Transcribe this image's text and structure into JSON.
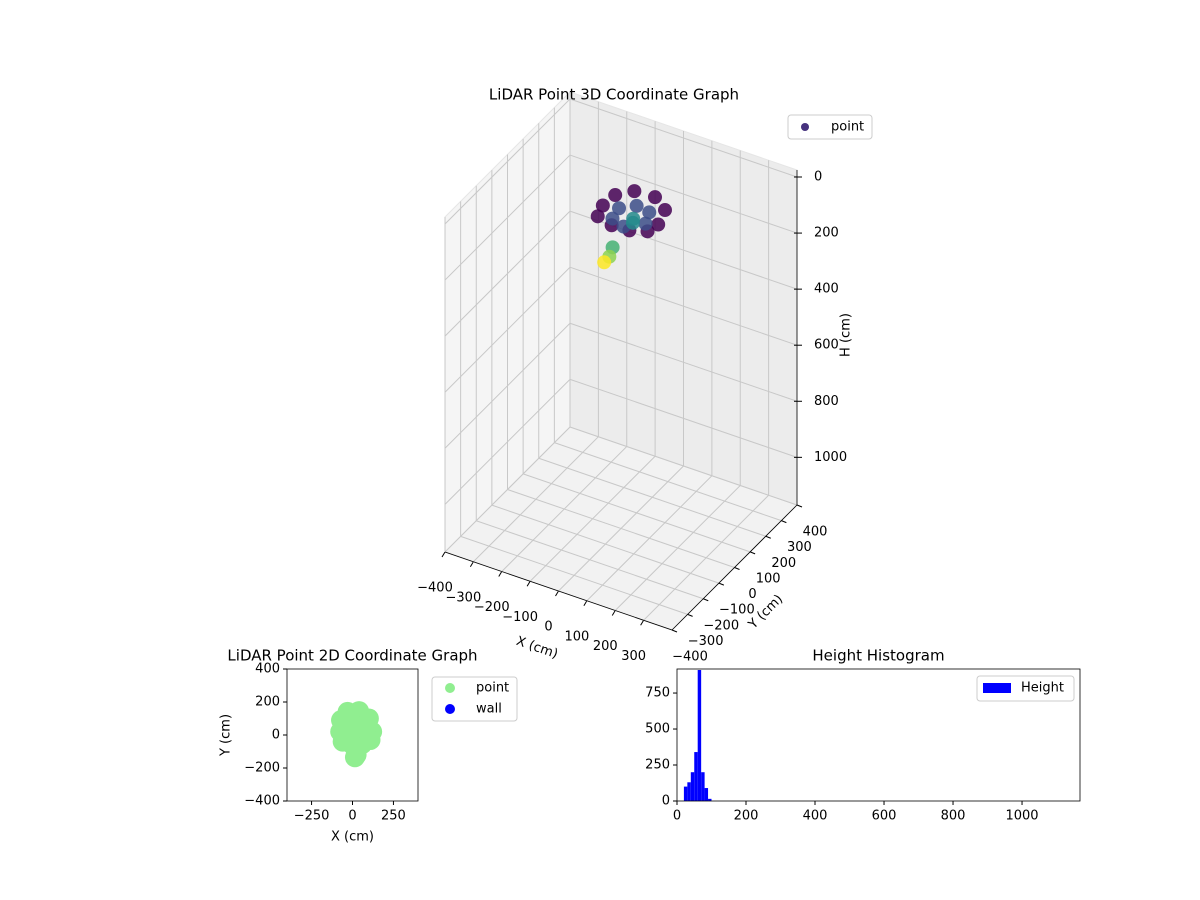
{
  "chart_data": [
    {
      "type": "scatter3d",
      "title": "LiDAR Point 3D Coordinate Graph",
      "xlabel": "X (cm)",
      "ylabel": "Y (cm)",
      "zlabel": "H (cm)",
      "xlim": [
        -400,
        400
      ],
      "ylim": [
        -400,
        400
      ],
      "zlim": [
        -25,
        1170
      ],
      "z_inverted": true,
      "xticks": [
        {
          "value": -400,
          "label": "−400"
        },
        {
          "value": -300,
          "label": "−300"
        },
        {
          "value": -200,
          "label": "−200"
        },
        {
          "value": -100,
          "label": "−100"
        },
        0,
        100,
        200,
        300
      ],
      "yticks": [
        {
          "value": -400,
          "label": "−400"
        },
        {
          "value": -300,
          "label": "−300"
        },
        {
          "value": -200,
          "label": "−200"
        },
        {
          "value": -100,
          "label": "−100"
        },
        0,
        100,
        200,
        300,
        400
      ],
      "zticks": [
        0,
        200,
        400,
        600,
        800,
        1000
      ],
      "colormap": "viridis",
      "legend": "upper right",
      "grid": true,
      "series": [
        {
          "name": "point",
          "color": "#46327e",
          "x": [
            120,
            100,
            40,
            -30,
            -70,
            -75,
            -60,
            0,
            60,
            110,
            70,
            50,
            0,
            -40,
            -30,
            20,
            20,
            10,
            20,
            25,
            15
          ],
          "y": [
            20,
            100,
            145,
            140,
            90,
            20,
            -40,
            -60,
            -55,
            -30,
            30,
            90,
            100,
            60,
            0,
            -20,
            40,
            60,
            -90,
            -120,
            -135
          ],
          "z": [
            55,
            55,
            55,
            55,
            55,
            55,
            55,
            55,
            55,
            55,
            75,
            75,
            75,
            75,
            75,
            75,
            95,
            95,
            110,
            125,
            140
          ]
        }
      ]
    },
    {
      "type": "scatter",
      "title": "LiDAR Point 2D Coordinate Graph",
      "xlabel": "X (cm)",
      "ylabel": "Y (cm)",
      "xlim": [
        -400,
        400
      ],
      "ylim": [
        -400,
        400
      ],
      "xticks": [
        {
          "value": -250,
          "label": "−250"
        },
        0,
        250
      ],
      "yticks": [
        {
          "value": -400,
          "label": "−400"
        },
        {
          "value": -200,
          "label": "−200"
        },
        0,
        200,
        400
      ],
      "legend": "outside right",
      "series": [
        {
          "name": "point",
          "color": "#90ee90",
          "x": [
            120,
            100,
            40,
            -30,
            -70,
            -75,
            -60,
            0,
            60,
            110,
            70,
            50,
            0,
            -40,
            -30,
            20,
            20,
            10,
            20,
            25,
            15
          ],
          "y": [
            20,
            100,
            145,
            140,
            90,
            20,
            -40,
            -60,
            -55,
            -30,
            30,
            90,
            100,
            60,
            0,
            -20,
            40,
            60,
            -90,
            -120,
            -135
          ]
        },
        {
          "name": "wall",
          "color": "#0000ff",
          "x": [],
          "y": []
        }
      ]
    },
    {
      "type": "histogram",
      "title": "Height Histogram",
      "name": "Height",
      "color": "#0000ff",
      "bins": [
        20,
        30,
        40,
        50,
        60,
        70,
        80,
        90,
        100
      ],
      "values": [
        100,
        130,
        200,
        340,
        910,
        200,
        90,
        15
      ],
      "xlim": [
        0,
        1168
      ],
      "ylim": [
        0,
        917
      ],
      "xticks": [
        0,
        200,
        400,
        600,
        800,
        1000
      ],
      "yticks": [
        0,
        250,
        500,
        750
      ],
      "legend": "upper right"
    }
  ]
}
